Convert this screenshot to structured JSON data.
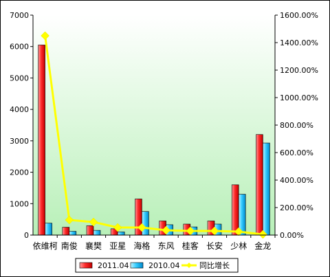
{
  "chart_data": {
    "type": "bar",
    "categories": [
      "依维柯",
      "南俊",
      "襄樊",
      "亚星",
      "海格",
      "东风",
      "桂客",
      "长安",
      "少林",
      "金龙"
    ],
    "series": [
      {
        "name": "2011.04",
        "kind": "bar",
        "axis": "left",
        "color": "#ff0000",
        "values": [
          6050,
          250,
          300,
          200,
          1150,
          450,
          350,
          450,
          1600,
          3200
        ]
      },
      {
        "name": "2010.04",
        "kind": "bar",
        "axis": "left",
        "color": "#33ccff",
        "values": [
          380,
          120,
          150,
          100,
          750,
          330,
          260,
          350,
          1300,
          2930
        ]
      },
      {
        "name": "同比增长",
        "kind": "line",
        "axis": "right",
        "color": "#ffff00",
        "values": [
          1450,
          110,
          95,
          55,
          55,
          35,
          30,
          30,
          25,
          5
        ]
      }
    ],
    "y_left": {
      "ylim": [
        0,
        7000
      ],
      "ticks": [
        "0",
        "1000",
        "2000",
        "3000",
        "4000",
        "5000",
        "6000",
        "7000"
      ]
    },
    "y_right": {
      "ylim": [
        0,
        1600
      ],
      "ticks": [
        "0.00%",
        "200.00%",
        "400.00%",
        "600.00%",
        "800.00%",
        "1000.00%",
        "1200.00%",
        "1400.00%",
        "1600.00%"
      ]
    },
    "legend": {
      "position": "bottom",
      "items": [
        "2011.04",
        "2010.04",
        "同比增长"
      ]
    },
    "plot_background": [
      "#ffffff",
      "#b8f0b8"
    ]
  }
}
